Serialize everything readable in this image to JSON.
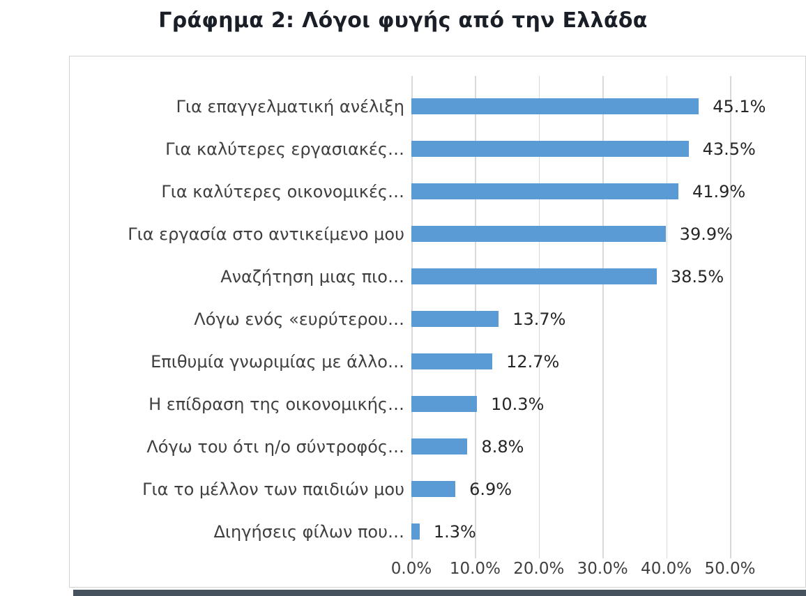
{
  "chart_data": {
    "type": "bar",
    "orientation": "horizontal",
    "title": "Γράφημα 2: Λόγοι φυγής από την Ελλάδα",
    "categories": [
      "Για επαγγελματική ανέλιξη",
      "Για καλύτερες εργασιακές…",
      "Για καλύτερες οικονομικές…",
      "Για εργασία στο αντικείμενο μου",
      "Αναζήτηση μιας πιο…",
      "Λόγω ενός «ευρύτερου…",
      "Επιθυμία γνωριμίας με άλλο…",
      "Η επίδραση της οικονομικής…",
      "Λόγω του ότι η/ο σύντροφός…",
      "Για το μέλλον των παιδιών μου",
      "Διηγήσεις φίλων που…"
    ],
    "values": [
      45.1,
      43.5,
      41.9,
      39.9,
      38.5,
      13.7,
      12.7,
      10.3,
      8.8,
      6.9,
      1.3
    ],
    "value_labels": [
      "45.1%",
      "43.5%",
      "41.9%",
      "39.9%",
      "38.5%",
      "13.7%",
      "12.7%",
      "10.3%",
      "8.8%",
      "6.9%",
      "1.3%"
    ],
    "x_ticks": [
      "0.0%",
      "10.0%",
      "20.0%",
      "30.0%",
      "40.0%",
      "50.0%"
    ],
    "xlim": [
      0,
      50
    ],
    "xlabel": "",
    "ylabel": "",
    "bar_color": "#5B9BD5",
    "grid": true,
    "legend": false
  }
}
